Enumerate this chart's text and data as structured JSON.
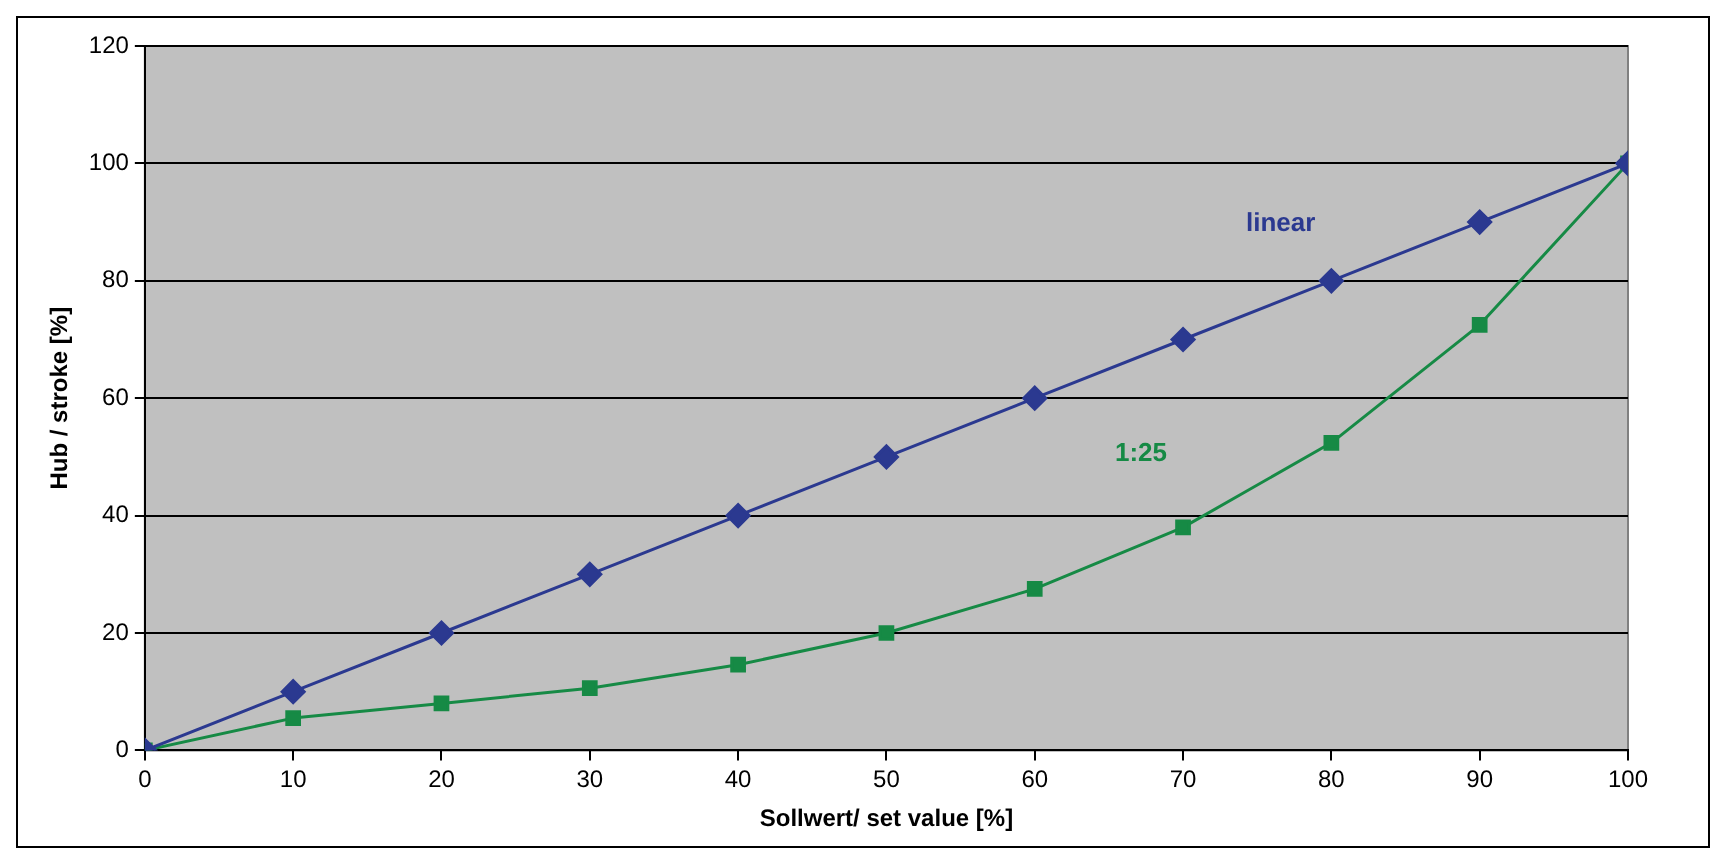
{
  "chart_data": {
    "type": "line",
    "xlabel": "Sollwert/ set value [%]",
    "ylabel": "Hub / stroke [%]",
    "x": [
      0,
      10,
      20,
      30,
      40,
      50,
      60,
      70,
      80,
      90,
      100
    ],
    "xlim": [
      0,
      100
    ],
    "xticks": [
      0,
      10,
      20,
      30,
      40,
      50,
      60,
      70,
      80,
      90,
      100
    ],
    "ylim": [
      0,
      120
    ],
    "yticks": [
      0,
      20,
      40,
      60,
      80,
      100,
      120
    ],
    "grid": "y",
    "legend": false,
    "line_style": "solid",
    "series": [
      {
        "name": "linear",
        "color": "#2b3990",
        "marker": "diamond",
        "values": [
          0,
          10,
          20,
          30,
          40,
          50,
          60,
          70,
          80,
          90,
          100
        ]
      },
      {
        "name": "1:25",
        "color": "#168a45",
        "marker": "square",
        "values": [
          0,
          5.5,
          8,
          10.6,
          14.6,
          20,
          27.5,
          38,
          52.4,
          72.5,
          100
        ]
      }
    ]
  }
}
